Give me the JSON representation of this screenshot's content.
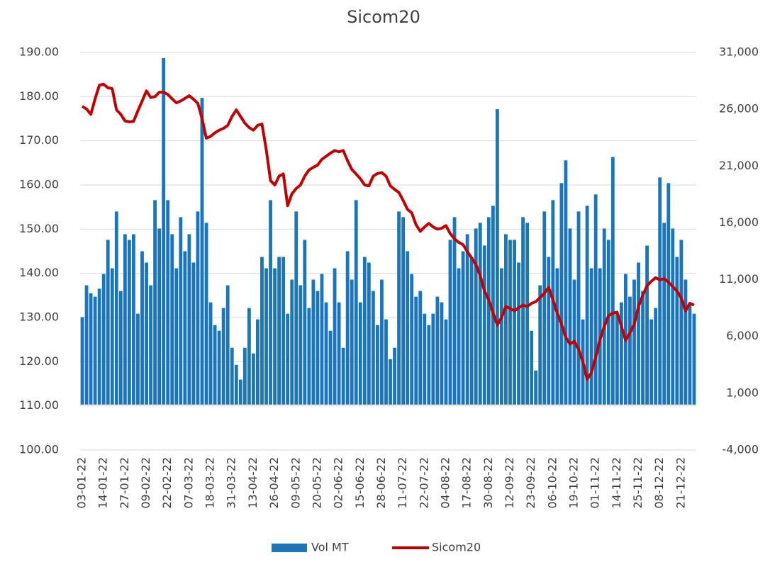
{
  "chart_data": {
    "type": "bar_line",
    "title": "Sicom20",
    "categories": [
      "03-01-22",
      null,
      null,
      null,
      null,
      "14-01-22",
      null,
      null,
      null,
      null,
      "27-01-22",
      null,
      null,
      null,
      null,
      "09-02-22",
      null,
      null,
      null,
      null,
      "22-02-22",
      null,
      null,
      null,
      null,
      "07-03-22",
      null,
      null,
      null,
      null,
      "18-03-22",
      null,
      null,
      null,
      null,
      "31-03-22",
      null,
      null,
      null,
      null,
      "13-04-22",
      null,
      null,
      null,
      null,
      "26-04-22",
      null,
      null,
      null,
      null,
      "09-05-22",
      null,
      null,
      null,
      null,
      "20-05-22",
      null,
      null,
      null,
      null,
      "02-06-22",
      null,
      null,
      null,
      null,
      "15-06-22",
      null,
      null,
      null,
      null,
      "28-06-22",
      null,
      null,
      null,
      null,
      "11-07-22",
      null,
      null,
      null,
      null,
      "22-07-22",
      null,
      null,
      null,
      null,
      "04-08-22",
      null,
      null,
      null,
      null,
      "17-08-22",
      null,
      null,
      null,
      null,
      "30-08-22",
      null,
      null,
      null,
      null,
      "12-09-22",
      null,
      null,
      null,
      null,
      "23-09-22",
      null,
      null,
      null,
      null,
      "06-10-22",
      null,
      null,
      null,
      null,
      "19-10-22",
      null,
      null,
      null,
      null,
      "01-11-22",
      null,
      null,
      null,
      null,
      "14-11-22",
      null,
      null,
      null,
      null,
      "25-11-22",
      null,
      null,
      null,
      null,
      "08-12-22",
      null,
      null,
      null,
      null,
      "21-12-22",
      null,
      null,
      null
    ],
    "series": [
      {
        "name": "Vol MT",
        "kind": "bar",
        "axis": "y2",
        "color": "#1b75bb",
        "values": [
          7700,
          10500,
          9800,
          9500,
          10200,
          11500,
          14500,
          12000,
          17000,
          10000,
          15000,
          14500,
          15000,
          8000,
          13500,
          12500,
          10500,
          18000,
          15500,
          30500,
          18000,
          15000,
          12000,
          16500,
          13500,
          15000,
          12500,
          17000,
          27000,
          16000,
          9000,
          7000,
          6500,
          8500,
          10500,
          5000,
          3500,
          2200,
          5000,
          8500,
          4500,
          7500,
          13000,
          12000,
          18000,
          12000,
          13000,
          13000,
          8000,
          11000,
          17000,
          10500,
          14500,
          8500,
          11000,
          10000,
          11500,
          9000,
          6500,
          12000,
          9000,
          5000,
          13500,
          11000,
          18000,
          9000,
          13000,
          12500,
          10000,
          7000,
          11000,
          7500,
          4000,
          5000,
          17000,
          16500,
          13500,
          11500,
          9500,
          10000,
          8000,
          7000,
          8000,
          9500,
          9000,
          7500,
          14500,
          16500,
          12000,
          13500,
          15000,
          13000,
          15500,
          16000,
          14000,
          16500,
          17500,
          26000,
          12000,
          15000,
          14500,
          14500,
          12500,
          16500,
          16000,
          6500,
          3000,
          10500,
          17000,
          13000,
          18000,
          12000,
          19500,
          21500,
          15500,
          11000,
          17000,
          7500,
          17500,
          12000,
          18500,
          12000,
          15500,
          14500,
          21800,
          8000,
          9000,
          11500,
          9500,
          11000,
          12500,
          10000,
          14000,
          7500,
          8500,
          20000,
          16000,
          19500,
          15500,
          13000,
          14500,
          11000,
          9000,
          8000
        ]
      },
      {
        "name": "Sicom20",
        "kind": "line",
        "color": "#c00000",
        "values": [
          177.8,
          177.2,
          176,
          179.5,
          182.6,
          182.8,
          182,
          181.8,
          177,
          176,
          174.5,
          174.3,
          174.4,
          176.8,
          179,
          181.3,
          179.8,
          180,
          181,
          181,
          180.5,
          179.5,
          178.6,
          179,
          179.6,
          180.2,
          179.4,
          178.5,
          175,
          170.6,
          171,
          171.8,
          172.4,
          172.8,
          173.5,
          175.5,
          177,
          175.5,
          174,
          173,
          172.4,
          173.5,
          173.8,
          168,
          161,
          160,
          162,
          162.5,
          155.3,
          158,
          159.2,
          160,
          162,
          163.4,
          164,
          164.5,
          165.8,
          166.5,
          167.2,
          167.8,
          167.5,
          167.8,
          165.5,
          163.5,
          162.5,
          161.4,
          160,
          159.8,
          162,
          162.6,
          162.8,
          162,
          159.8,
          159,
          158.3,
          156.5,
          154.5,
          153.7,
          151,
          149.5,
          150.5,
          151.3,
          150.5,
          150,
          150.2,
          150.8,
          149,
          147.8,
          147,
          146.5,
          144.9,
          143.5,
          142,
          139.5,
          136,
          134,
          131,
          128.3,
          130,
          132.5,
          132,
          131.5,
          132.2,
          132.8,
          132.5,
          133.2,
          133.6,
          134.5,
          135.5,
          136.8,
          134,
          131,
          128.5,
          125.5,
          124,
          124.6,
          122.8,
          120,
          116,
          117.5,
          121,
          125,
          128,
          130.4,
          131,
          131.2,
          128,
          124.8,
          126.5,
          128.5,
          132.5,
          135,
          137.2,
          138.2,
          139,
          138.5,
          138.8,
          138,
          137,
          136,
          134.4,
          131.5,
          133.2,
          132.8
        ]
      }
    ],
    "ylim": [
      100,
      190
    ],
    "yticks": [
      {
        "value": 100,
        "label": "100.00"
      },
      {
        "value": 110,
        "label": "110.00"
      },
      {
        "value": 120,
        "label": "120.00"
      },
      {
        "value": 130,
        "label": "130.00"
      },
      {
        "value": 140,
        "label": "140.00"
      },
      {
        "value": 150,
        "label": "150.00"
      },
      {
        "value": 160,
        "label": "160.00"
      },
      {
        "value": 170,
        "label": "170.00"
      },
      {
        "value": 180,
        "label": "180.00"
      },
      {
        "value": 190,
        "label": "190.00"
      }
    ],
    "y2lim": [
      -4000,
      31000
    ],
    "y2ticks": [
      {
        "value": -4000,
        "label": "-4,000"
      },
      {
        "value": 1000,
        "label": "1,000"
      },
      {
        "value": 6000,
        "label": "6,000"
      },
      {
        "value": 11000,
        "label": "11,000"
      },
      {
        "value": 16000,
        "label": "16,000"
      },
      {
        "value": 21000,
        "label": "21,000"
      },
      {
        "value": 26000,
        "label": "26,000"
      },
      {
        "value": 31000,
        "label": "31,000"
      }
    ],
    "grid": true,
    "legend": "bottom"
  }
}
